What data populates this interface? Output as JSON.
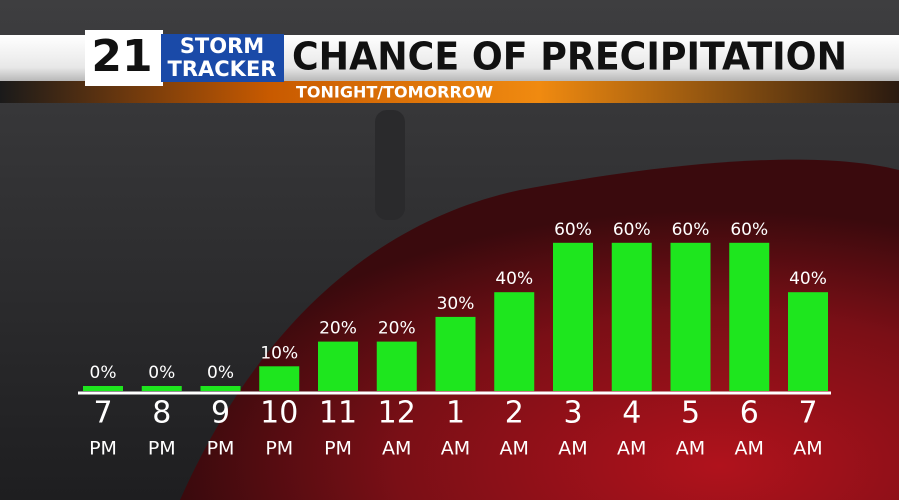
{
  "chart_data": {
    "type": "bar",
    "title": "CHANCE OF PRECIPITATION",
    "subtitle": "TONIGHT/TOMORROW",
    "logo": {
      "number": "21",
      "line1": "STORM",
      "line2": "TRACKER"
    },
    "categories": [
      [
        "7",
        "PM"
      ],
      [
        "8",
        "PM"
      ],
      [
        "9",
        "PM"
      ],
      [
        "10",
        "PM"
      ],
      [
        "11",
        "PM"
      ],
      [
        "12",
        "AM"
      ],
      [
        "1",
        "AM"
      ],
      [
        "2",
        "AM"
      ],
      [
        "3",
        "AM"
      ],
      [
        "4",
        "AM"
      ],
      [
        "5",
        "AM"
      ],
      [
        "6",
        "AM"
      ],
      [
        "7",
        "AM"
      ]
    ],
    "values": [
      0,
      0,
      0,
      10,
      20,
      20,
      30,
      40,
      60,
      60,
      60,
      60,
      40
    ],
    "value_labels": [
      "0%",
      "0%",
      "0%",
      "10%",
      "20%",
      "20%",
      "30%",
      "40%",
      "60%",
      "60%",
      "60%",
      "60%",
      "40%"
    ],
    "color": "#1ee61e"
  }
}
